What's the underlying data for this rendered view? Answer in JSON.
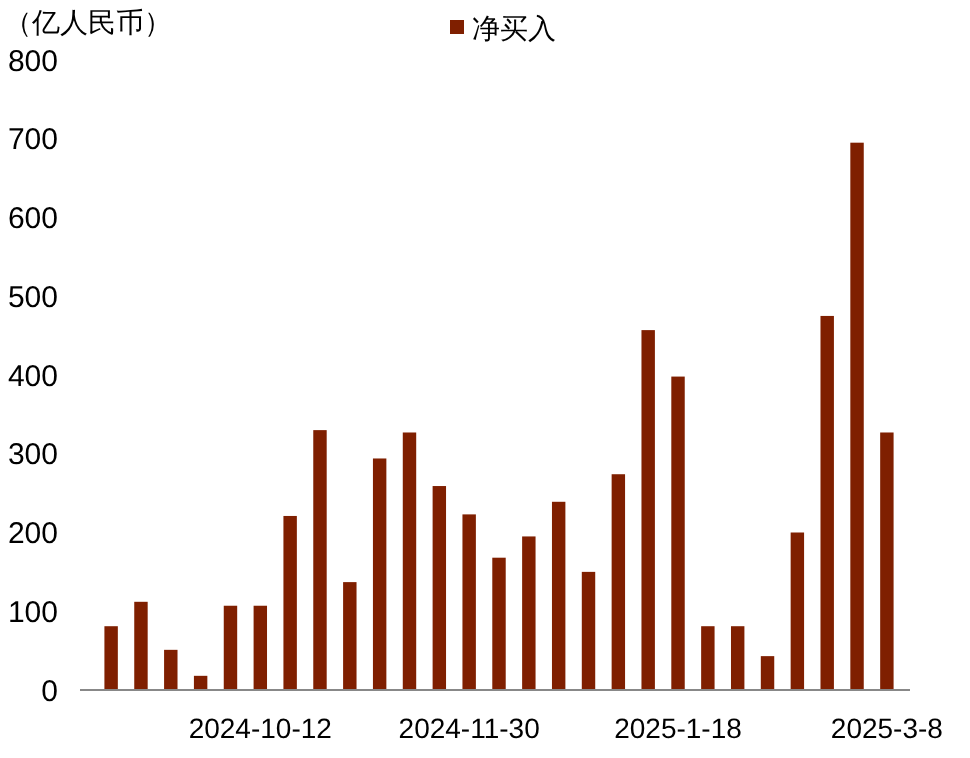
{
  "chart_data": {
    "type": "bar",
    "ylabel": "（亿人民币）",
    "categories": [
      null,
      null,
      null,
      null,
      null,
      "2024-10-12",
      null,
      null,
      null,
      null,
      null,
      null,
      "2024-11-30",
      null,
      null,
      null,
      null,
      null,
      null,
      "2025-1-18",
      null,
      null,
      null,
      null,
      null,
      null,
      "2025-3-8"
    ],
    "series": [
      {
        "name": "净买入",
        "color": "#7f1f00",
        "values": [
          81,
          112,
          51,
          18,
          107,
          107,
          221,
          330,
          137,
          294,
          327,
          259,
          223,
          168,
          195,
          239,
          150,
          274,
          457,
          398,
          81,
          81,
          43,
          200,
          475,
          695,
          327
        ]
      }
    ],
    "ylim": [
      0,
      800
    ],
    "yticks": [
      0,
      100,
      200,
      300,
      400,
      500,
      600,
      700,
      800
    ],
    "grid": false,
    "legend": "top"
  }
}
